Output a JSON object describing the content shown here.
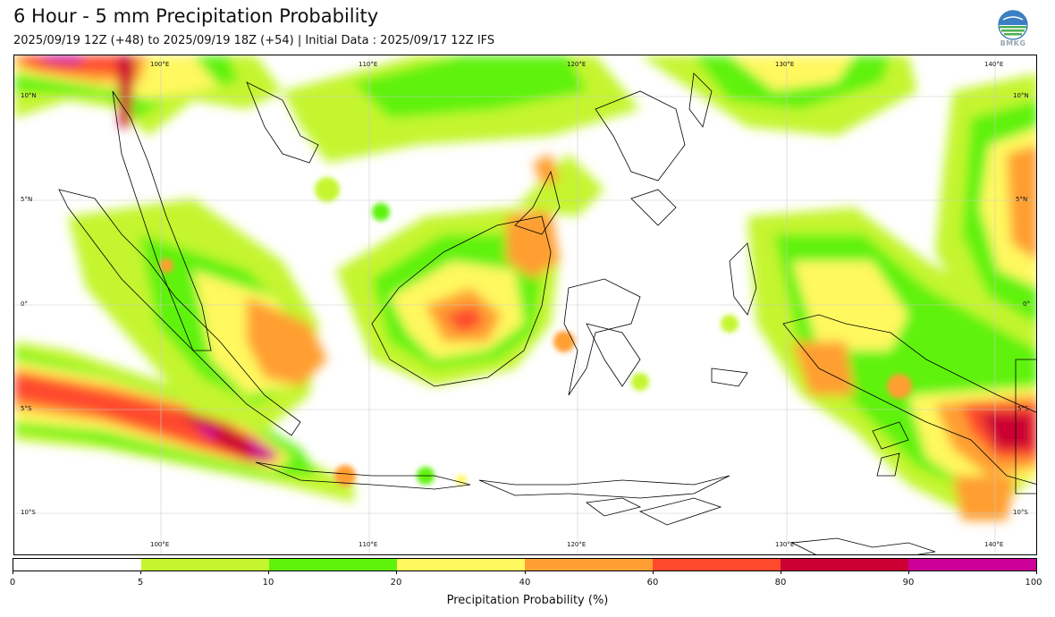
{
  "header": {
    "title": "6 Hour - 5 mm Precipitation Probability",
    "subtitle": "2025/09/19 12Z (+48) to 2025/09/19 18Z (+54) | Initial Data : 2025/09/17 12Z IFS",
    "logo_text": "BMKG"
  },
  "map": {
    "lon_labels_top": [
      "100°E",
      "110°E",
      "120°E",
      "130°E",
      "140°E"
    ],
    "lon_labels_bottom": [
      "100°E",
      "110°E",
      "120°E",
      "130°E",
      "140°E"
    ],
    "lat_labels_left": [
      "10°N",
      "5°N",
      "0°",
      "5°S",
      "10°S"
    ],
    "lat_labels_right": [
      "10°N",
      "5°N",
      "0°",
      "5°S",
      "10°S"
    ]
  },
  "colorbar": {
    "label": "Precipitation Probability (%)",
    "ticks": [
      "0",
      "5",
      "10",
      "20",
      "40",
      "60",
      "80",
      "90",
      "100"
    ],
    "colors": [
      "#ffffff",
      "#c4f52e",
      "#5ff20a",
      "#fff85e",
      "#ff9f33",
      "#ff4a2e",
      "#cc0033",
      "#cc0099"
    ]
  }
}
